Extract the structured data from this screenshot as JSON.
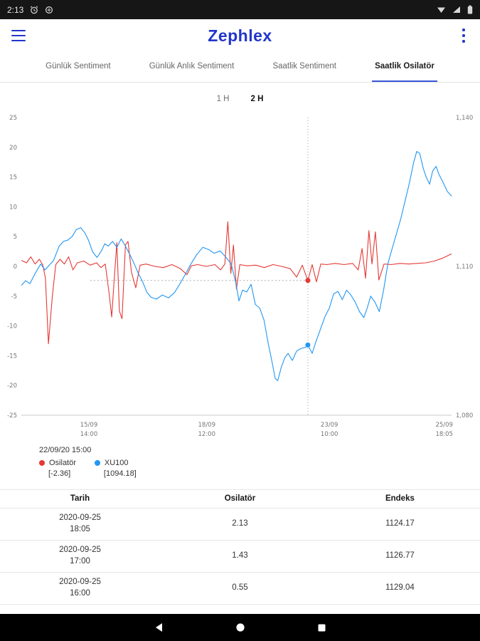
{
  "status_bar": {
    "time": "2:13"
  },
  "app_bar": {
    "title": "Zephlex"
  },
  "tabs": {
    "selected_index": 3,
    "items": [
      {
        "label": "Günlük Sentiment"
      },
      {
        "label": "Günlük Anlık Sentiment"
      },
      {
        "label": "Saatlik Sentiment"
      },
      {
        "label": "Saatlik Osilatör"
      }
    ]
  },
  "range_toggle": {
    "options": [
      "1 H",
      "2 H"
    ],
    "selected_index": 1
  },
  "chart_data": {
    "type": "line",
    "title": "",
    "left_axis": {
      "ticks": [
        25,
        20,
        15,
        10,
        5,
        0,
        -5,
        -10,
        -15,
        -20,
        -25
      ],
      "range": [
        -25,
        25
      ]
    },
    "right_axis": {
      "ticks": [
        {
          "value": 25,
          "label": "1,140"
        },
        {
          "value": 0,
          "label": "1,110"
        },
        {
          "value": -25,
          "label": "1,080"
        }
      ],
      "range": [
        1080,
        1140
      ]
    },
    "x_ticks": [
      {
        "pos": 15.7,
        "line1": "15/09",
        "line2": "14:00"
      },
      {
        "pos": 43.1,
        "line1": "18/09",
        "line2": "12:00"
      },
      {
        "pos": 71.6,
        "line1": "23/09",
        "line2": "10:00"
      },
      {
        "pos": 98.3,
        "line1": "25/09",
        "line2": "18:05"
      }
    ],
    "selection": {
      "pos": 66.6,
      "timestamp": "22/09/20 15:00",
      "osilator_value": -2.36,
      "xu100_value": 1094.18,
      "xu100_mapped": -13.2
    },
    "series": [
      {
        "name": "Osilatör",
        "color": "#e53935",
        "points": [
          [
            0,
            1.0
          ],
          [
            1.2,
            0.6
          ],
          [
            2.2,
            1.6
          ],
          [
            3.2,
            0.4
          ],
          [
            4.2,
            1.2
          ],
          [
            5.0,
            0.2
          ],
          [
            5.6,
            -2.0
          ],
          [
            6.3,
            -13.0
          ],
          [
            7.2,
            -5.0
          ],
          [
            8.0,
            0.3
          ],
          [
            9.0,
            1.2
          ],
          [
            10.0,
            0.4
          ],
          [
            11.0,
            1.6
          ],
          [
            12.0,
            -0.6
          ],
          [
            13.0,
            0.6
          ],
          [
            14.5,
            0.9
          ],
          [
            16.0,
            0.2
          ],
          [
            17.5,
            0.6
          ],
          [
            18.5,
            -0.2
          ],
          [
            19.5,
            0.4
          ],
          [
            20.4,
            -4.5
          ],
          [
            21.0,
            -8.5
          ],
          [
            21.6,
            -2.0
          ],
          [
            22.2,
            4.0
          ],
          [
            22.8,
            -7.5
          ],
          [
            23.4,
            -8.8
          ],
          [
            24.2,
            3.6
          ],
          [
            24.8,
            4.2
          ],
          [
            25.6,
            -1.0
          ],
          [
            26.6,
            -3.6
          ],
          [
            27.6,
            0.2
          ],
          [
            29.0,
            0.4
          ],
          [
            31.0,
            0.0
          ],
          [
            33.0,
            -0.2
          ],
          [
            35.0,
            0.3
          ],
          [
            37.0,
            -0.4
          ],
          [
            38.5,
            -1.4
          ],
          [
            39.5,
            0.1
          ],
          [
            41.0,
            0.3
          ],
          [
            43.0,
            0.0
          ],
          [
            45.0,
            0.3
          ],
          [
            46.3,
            -0.6
          ],
          [
            47.3,
            0.4
          ],
          [
            48.0,
            7.5
          ],
          [
            48.7,
            -1.2
          ],
          [
            49.3,
            3.6
          ],
          [
            50.0,
            -3.8
          ],
          [
            50.8,
            0.3
          ],
          [
            52.5,
            0.1
          ],
          [
            54.5,
            0.2
          ],
          [
            56.5,
            -0.2
          ],
          [
            58.5,
            0.3
          ],
          [
            60.5,
            0.0
          ],
          [
            62.5,
            -0.4
          ],
          [
            64.0,
            -1.8
          ],
          [
            65.3,
            0.2
          ],
          [
            66.6,
            -2.4
          ],
          [
            67.6,
            0.3
          ],
          [
            68.6,
            -2.6
          ],
          [
            69.6,
            0.4
          ],
          [
            71.0,
            0.3
          ],
          [
            73.0,
            0.5
          ],
          [
            75.0,
            0.3
          ],
          [
            77.0,
            0.5
          ],
          [
            78.3,
            -0.6
          ],
          [
            79.2,
            3.0
          ],
          [
            80.0,
            -2.0
          ],
          [
            80.8,
            6.0
          ],
          [
            81.5,
            0.4
          ],
          [
            82.3,
            5.8
          ],
          [
            83.1,
            -2.3
          ],
          [
            84.3,
            0.4
          ],
          [
            86.0,
            0.3
          ],
          [
            88.0,
            0.5
          ],
          [
            90.0,
            0.4
          ],
          [
            92.0,
            0.5
          ],
          [
            94.0,
            0.6
          ],
          [
            96.0,
            0.9
          ],
          [
            98.0,
            1.4
          ],
          [
            100,
            2.1
          ]
        ]
      },
      {
        "name": "XU100",
        "color": "#2196f3",
        "points": [
          [
            0,
            -3.2
          ],
          [
            1.0,
            -2.4
          ],
          [
            2.0,
            -2.9
          ],
          [
            3.2,
            -1.2
          ],
          [
            4.5,
            0.4
          ],
          [
            5.5,
            -0.6
          ],
          [
            6.5,
            0.2
          ],
          [
            7.5,
            1.0
          ],
          [
            8.8,
            3.4
          ],
          [
            9.8,
            4.2
          ],
          [
            10.8,
            4.4
          ],
          [
            11.8,
            5.0
          ],
          [
            12.8,
            6.2
          ],
          [
            13.8,
            6.5
          ],
          [
            14.8,
            5.6
          ],
          [
            15.6,
            4.4
          ],
          [
            16.6,
            2.4
          ],
          [
            17.6,
            1.5
          ],
          [
            18.6,
            2.6
          ],
          [
            19.4,
            3.8
          ],
          [
            20.2,
            3.4
          ],
          [
            21.2,
            4.2
          ],
          [
            22.2,
            3.2
          ],
          [
            23.2,
            4.6
          ],
          [
            24.2,
            3.4
          ],
          [
            25.2,
            2.0
          ],
          [
            26.2,
            0.5
          ],
          [
            27.2,
            -1.2
          ],
          [
            28.2,
            -2.6
          ],
          [
            29.2,
            -4.4
          ],
          [
            30.2,
            -5.2
          ],
          [
            31.4,
            -5.5
          ],
          [
            32.8,
            -4.8
          ],
          [
            34.2,
            -5.3
          ],
          [
            35.6,
            -4.4
          ],
          [
            36.8,
            -3.0
          ],
          [
            38.0,
            -1.5
          ],
          [
            39.4,
            0.4
          ],
          [
            40.8,
            2.0
          ],
          [
            42.2,
            3.2
          ],
          [
            43.6,
            2.8
          ],
          [
            44.8,
            2.2
          ],
          [
            46.2,
            2.6
          ],
          [
            47.6,
            1.5
          ],
          [
            48.8,
            0.4
          ],
          [
            49.8,
            -2.6
          ],
          [
            50.6,
            -5.8
          ],
          [
            51.4,
            -4.0
          ],
          [
            52.4,
            -4.3
          ],
          [
            53.4,
            -3.0
          ],
          [
            54.4,
            -6.4
          ],
          [
            55.4,
            -7.0
          ],
          [
            56.4,
            -9.0
          ],
          [
            57.4,
            -13.0
          ],
          [
            58.4,
            -16.5
          ],
          [
            59.0,
            -18.8
          ],
          [
            59.6,
            -19.2
          ],
          [
            60.4,
            -17.0
          ],
          [
            61.2,
            -15.4
          ],
          [
            62.0,
            -14.6
          ],
          [
            63.0,
            -15.8
          ],
          [
            64.0,
            -14.2
          ],
          [
            65.0,
            -13.8
          ],
          [
            66.0,
            -13.6
          ],
          [
            66.6,
            -13.2
          ],
          [
            67.6,
            -14.6
          ],
          [
            68.6,
            -12.4
          ],
          [
            69.6,
            -10.4
          ],
          [
            70.6,
            -8.4
          ],
          [
            71.6,
            -7.0
          ],
          [
            72.6,
            -4.6
          ],
          [
            73.6,
            -4.2
          ],
          [
            74.6,
            -5.6
          ],
          [
            75.6,
            -4.0
          ],
          [
            76.6,
            -4.8
          ],
          [
            77.6,
            -6.0
          ],
          [
            78.6,
            -7.6
          ],
          [
            79.6,
            -8.6
          ],
          [
            80.4,
            -7.0
          ],
          [
            81.2,
            -5.0
          ],
          [
            82.2,
            -6.0
          ],
          [
            83.2,
            -7.6
          ],
          [
            84.2,
            -4.0
          ],
          [
            85.2,
            0.5
          ],
          [
            86.2,
            3.0
          ],
          [
            87.2,
            5.5
          ],
          [
            88.2,
            8.0
          ],
          [
            89.2,
            11.0
          ],
          [
            90.2,
            14.0
          ],
          [
            91.2,
            17.5
          ],
          [
            91.9,
            19.3
          ],
          [
            92.6,
            19.0
          ],
          [
            93.4,
            16.5
          ],
          [
            94.1,
            15.0
          ],
          [
            94.9,
            13.8
          ],
          [
            95.6,
            16.0
          ],
          [
            96.4,
            16.8
          ],
          [
            97.1,
            15.4
          ],
          [
            98.1,
            14.0
          ],
          [
            99.0,
            12.6
          ],
          [
            100,
            11.8
          ]
        ]
      }
    ]
  },
  "legend": {
    "timestamp": "22/09/20 15:00",
    "items": [
      {
        "label": "Osilatör",
        "value": "[-2.36]",
        "color": "#e53935"
      },
      {
        "label": "XU100",
        "value": "[1094.18]",
        "color": "#2196f3"
      }
    ]
  },
  "table": {
    "headers": [
      "Tarih",
      "Osilatör",
      "Endeks"
    ],
    "rows": [
      {
        "date": "2020-09-25",
        "time": "18:05",
        "osilator": "2.13",
        "endeks": "1124.17"
      },
      {
        "date": "2020-09-25",
        "time": "17:00",
        "osilator": "1.43",
        "endeks": "1126.77"
      },
      {
        "date": "2020-09-25",
        "time": "16:00",
        "osilator": "0.55",
        "endeks": "1129.04"
      }
    ]
  },
  "colors": {
    "brand": "#2236c9",
    "tab_underline": "#3b55d9",
    "osilator": "#e53935",
    "xu100": "#2196f3"
  }
}
